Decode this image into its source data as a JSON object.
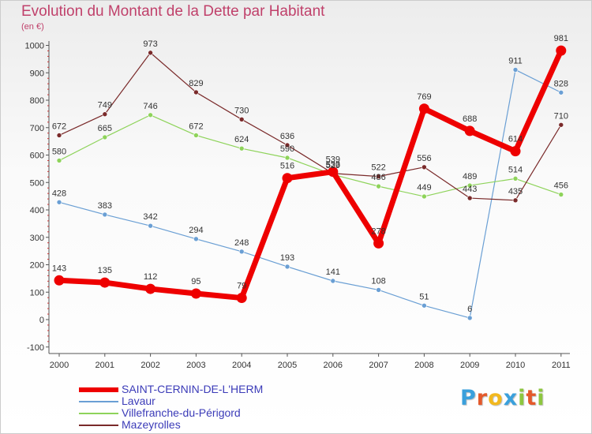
{
  "title": "Evolution du Montant de la Dette par Habitant",
  "subtitle": "(en €)",
  "logo": {
    "text": "Proxiti",
    "letters": [
      {
        "ch": "P",
        "color": "#3aa0dc"
      },
      {
        "ch": "r",
        "color": "#e4592b"
      },
      {
        "ch": "o",
        "color": "#f2b81e"
      },
      {
        "ch": "x",
        "color": "#3aa0dc"
      },
      {
        "ch": "i",
        "color": "#8dc63f"
      },
      {
        "ch": "t",
        "color": "#e4592b"
      },
      {
        "ch": "i",
        "color": "#8dc63f"
      }
    ]
  },
  "chart_data": {
    "type": "line",
    "title": "Evolution du Montant de la Dette par Habitant",
    "ylabel": "(en €)",
    "x": [
      "2000",
      "2001",
      "2002",
      "2003",
      "2004",
      "2005",
      "2006",
      "2007",
      "2008",
      "2009",
      "2010",
      "2011"
    ],
    "ylim": [
      -100,
      1000
    ],
    "yticks": [
      "-100",
      "0",
      "100",
      "200",
      "300",
      "400",
      "500",
      "600",
      "700",
      "800",
      "900",
      "1000"
    ],
    "grid": false,
    "legend_position": "bottom-left",
    "series": [
      {
        "name": "SAINT-CERNIN-DE-L'HERM",
        "color": "#ee0000",
        "values": [
          143,
          135,
          112,
          95,
          79,
          516,
          539,
          278,
          769,
          688,
          614,
          981
        ],
        "labels": [
          "143",
          "135",
          "112",
          "95",
          "79",
          "516",
          "539",
          "278",
          "769",
          "688",
          "614",
          "981"
        ]
      },
      {
        "name": "Lavaur",
        "color": "#6a9fd4",
        "values": [
          428,
          383,
          342,
          294,
          248,
          193,
          141,
          108,
          51,
          6,
          911,
          828
        ],
        "labels": [
          "428",
          "383",
          "342",
          "294",
          "248",
          "193",
          "141",
          "108",
          "51",
          "6",
          "911",
          "828"
        ]
      },
      {
        "name": "Villefranche-du-Périgord",
        "color": "#8ed35a",
        "values": [
          580,
          665,
          746,
          672,
          624,
          590,
          529,
          486,
          449,
          489,
          514,
          456
        ],
        "labels": [
          "580",
          "665",
          "746",
          "672",
          "624",
          "590",
          "529",
          "486",
          "449",
          "489",
          "514",
          "456"
        ]
      },
      {
        "name": "Mazeyrolles",
        "color": "#7a2a2a",
        "values": [
          672,
          749,
          973,
          829,
          730,
          636,
          533,
          522,
          556,
          443,
          435,
          710
        ],
        "labels": [
          "672",
          "749",
          "973",
          "829",
          "730",
          "636",
          "533",
          "522",
          "556",
          "443",
          "435",
          "710"
        ]
      }
    ]
  }
}
